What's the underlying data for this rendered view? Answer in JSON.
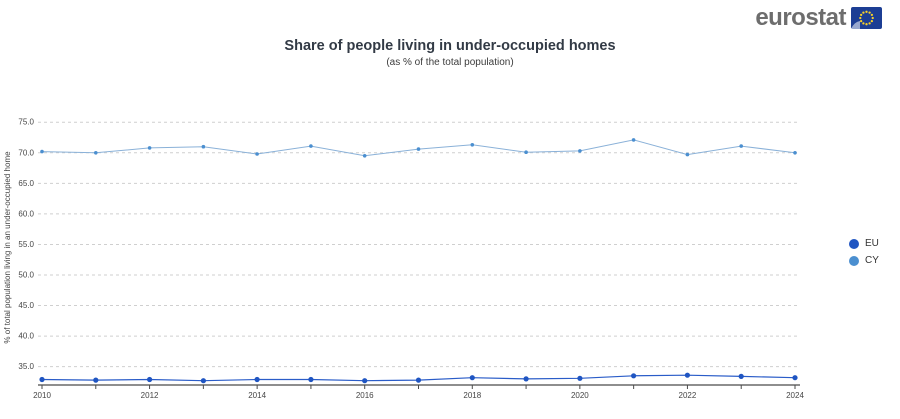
{
  "logo": {
    "text": "eurostat",
    "flag_blue": "#1c3e94",
    "flag_star_color": "#f8d12a"
  },
  "chart_data": {
    "type": "line",
    "title": "Share of people living in under-occupied homes",
    "subtitle": "(as % of the total population)",
    "x": [
      2010,
      2011,
      2012,
      2013,
      2014,
      2015,
      2016,
      2017,
      2018,
      2019,
      2020,
      2021,
      2022,
      2023,
      2024
    ],
    "series": [
      {
        "name": "EU",
        "line_color": "#2a5cc8",
        "marker_color": "#1f55c2",
        "values": [
          32.9,
          32.8,
          32.9,
          32.7,
          32.9,
          32.9,
          32.7,
          32.8,
          33.2,
          33.0,
          33.1,
          33.5,
          33.6,
          33.4,
          33.2
        ]
      },
      {
        "name": "CY",
        "line_color": "#8ab1d8",
        "marker_color": "#4b8fd0",
        "values": [
          70.2,
          70.0,
          70.8,
          71.0,
          69.8,
          71.1,
          69.5,
          70.6,
          71.3,
          70.1,
          70.3,
          72.1,
          69.7,
          71.1,
          70.0
        ]
      }
    ],
    "xlabel": "",
    "ylabel": "% of total population living in an under-occupied home",
    "ylim": [
      32,
      77
    ],
    "yticks": [
      35,
      40,
      45,
      50,
      55,
      60,
      65,
      70,
      75
    ],
    "xticks_labeled": [
      2010,
      2012,
      2014,
      2016,
      2018,
      2020,
      2022,
      2024
    ],
    "grid": "horizontal-dashed",
    "legend_position": "right-middle",
    "axis_color": "#4a4a4a",
    "grid_color": "#cfcfcf",
    "tick_label_color": "#454545"
  }
}
